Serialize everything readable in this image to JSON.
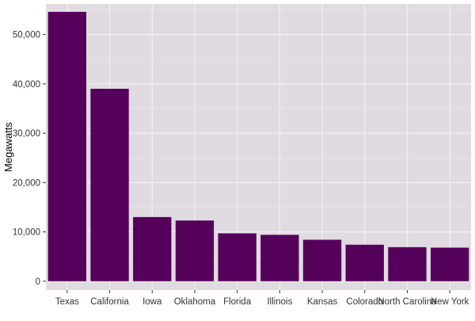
{
  "chart_data": {
    "type": "bar",
    "title": "",
    "xlabel": "",
    "ylabel": "Megawatts",
    "categories": [
      "Texas",
      "California",
      "Iowa",
      "Oklahoma",
      "Florida",
      "Illinois",
      "Kansas",
      "Colorado",
      "North Carolina",
      "New York"
    ],
    "values": [
      54600,
      39000,
      13000,
      12300,
      9700,
      9400,
      8400,
      7400,
      6900,
      6800
    ],
    "ylim": [
      0,
      55000
    ],
    "yticks": [
      0,
      10000,
      20000,
      30000,
      40000,
      50000
    ],
    "ytick_labels": [
      "0",
      "10,000",
      "20,000",
      "30,000",
      "40,000",
      "50,000"
    ],
    "grid": true,
    "legend": "none",
    "colors": {
      "bar": "#55005a",
      "panel": "#dfdbe0",
      "grid_major": "#f4f2f5",
      "grid_minor": "#ebe8ec",
      "text": "#333333",
      "title": "#000000"
    }
  }
}
